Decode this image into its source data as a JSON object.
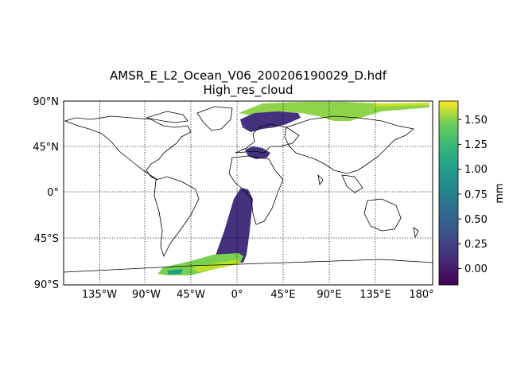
{
  "figure": {
    "title_line1": "AMSR_E_L2_Ocean_V06_200206190029_D.hdf",
    "title_line2": "High_res_cloud"
  },
  "chart_data": {
    "type": "heatmap",
    "title": "AMSR_E_L2_Ocean_V06_200206190029_D.hdf\nHigh_res_cloud",
    "projection": "PlateCarree",
    "xlim": [
      -180,
      180
    ],
    "ylim": [
      -90,
      90
    ],
    "x_ticks": [
      -135,
      -90,
      -45,
      0,
      45,
      90,
      135,
      180
    ],
    "x_tick_labels": [
      "135°W",
      "90°W",
      "45°W",
      "0°",
      "45°E",
      "90°E",
      "135°E",
      "180°"
    ],
    "y_ticks": [
      90,
      45,
      0,
      -45,
      -90
    ],
    "y_tick_labels": [
      "90°N",
      "45°N",
      "0°",
      "45°S",
      "90°S"
    ],
    "grid": true,
    "colorbar": {
      "label": "mm",
      "range": [
        -0.15,
        1.7
      ],
      "ticks": [
        0.0,
        0.25,
        0.5,
        0.75,
        1.0,
        1.25,
        1.5
      ],
      "tick_labels": [
        "0.00",
        "0.25",
        "0.50",
        "0.75",
        "1.00",
        "1.25",
        "1.50"
      ],
      "colormap": "viridis"
    },
    "swath_segments": [
      {
        "region": "north-atlantic-arctic",
        "lon_range": [
          10,
          180
        ],
        "lat_range": [
          78,
          88
        ],
        "dominant_value": 1.2
      },
      {
        "region": "europe-scandinavia",
        "lon_range": [
          15,
          60
        ],
        "lat_range": [
          60,
          78
        ],
        "dominant_value": 0.0
      },
      {
        "region": "mediterranean",
        "lon_range": [
          15,
          35
        ],
        "lat_range": [
          31,
          45
        ],
        "dominant_value": 0.0
      },
      {
        "region": "south-atlantic-strip",
        "lon_range": [
          -5,
          15
        ],
        "lat_range": [
          -70,
          0
        ],
        "dominant_value": 0.0
      },
      {
        "region": "southern-ocean",
        "lon_range": [
          -80,
          10
        ],
        "lat_range": [
          -80,
          -60
        ],
        "dominant_value": 1.15
      }
    ]
  },
  "colors": {
    "low": "#440154",
    "mid": "#2a788e",
    "high": "#7ad151",
    "max": "#fde725"
  }
}
